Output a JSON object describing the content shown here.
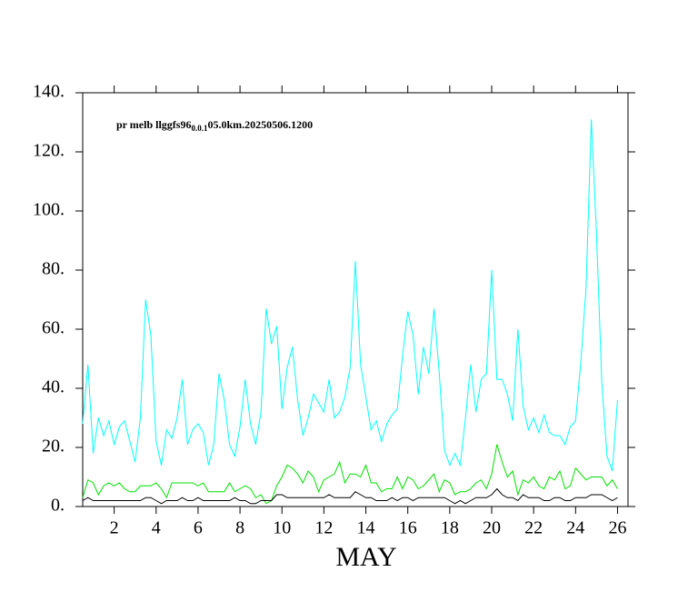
{
  "chart_data": {
    "type": "line",
    "annotation": [
      "pr melb llggfs96",
      "0.0.1",
      "05.0km.20250506.1200"
    ],
    "xlabel": "MAY",
    "xlim": [
      0.5,
      26.5
    ],
    "xticks": [
      2,
      4,
      6,
      8,
      10,
      12,
      14,
      16,
      18,
      20,
      22,
      24,
      26
    ],
    "ylim": [
      0,
      140
    ],
    "yticks": [
      {
        "value": 0,
        "label": "0."
      },
      {
        "value": 20,
        "label": "20."
      },
      {
        "value": 40,
        "label": "40."
      },
      {
        "value": 60,
        "label": "60."
      },
      {
        "value": 80,
        "label": "80."
      },
      {
        "value": 100,
        "label": "100."
      },
      {
        "value": 120,
        "label": "120."
      },
      {
        "value": 140,
        "label": "140."
      }
    ],
    "grid": false,
    "x": [
      0.5,
      0.75,
      1,
      1.25,
      1.5,
      1.75,
      2,
      2.25,
      2.5,
      2.75,
      3,
      3.25,
      3.5,
      3.75,
      4,
      4.25,
      4.5,
      4.75,
      5,
      5.25,
      5.5,
      5.75,
      6,
      6.25,
      6.5,
      6.75,
      7,
      7.25,
      7.5,
      7.75,
      8,
      8.25,
      8.5,
      8.75,
      9,
      9.25,
      9.5,
      9.75,
      10,
      10.25,
      10.5,
      10.75,
      11,
      11.25,
      11.5,
      11.75,
      12,
      12.25,
      12.5,
      12.75,
      13,
      13.25,
      13.5,
      13.75,
      14,
      14.25,
      14.5,
      14.75,
      15,
      15.25,
      15.5,
      15.75,
      16,
      16.25,
      16.5,
      16.75,
      17,
      17.25,
      17.5,
      17.75,
      18,
      18.25,
      18.5,
      18.75,
      19,
      19.25,
      19.5,
      19.75,
      20,
      20.25,
      20.5,
      20.75,
      21,
      21.25,
      21.5,
      21.75,
      22,
      22.25,
      22.5,
      22.75,
      23,
      23.25,
      23.5,
      23.75,
      24,
      24.25,
      24.5,
      24.75,
      25,
      25.25,
      25.5,
      25.75,
      26
    ],
    "series": [
      {
        "color": "#00ffff",
        "values": [
          28,
          48,
          18,
          30,
          24,
          29,
          21,
          27,
          29,
          22,
          15,
          30,
          70,
          58,
          22,
          14,
          26,
          23,
          30,
          43,
          21,
          26,
          28,
          25,
          14,
          21,
          45,
          36,
          21,
          17,
          27,
          43,
          28,
          21,
          32,
          67,
          55,
          61,
          33,
          47,
          54,
          36,
          24,
          30,
          38,
          35,
          32,
          43,
          30,
          32,
          37,
          47,
          83,
          48,
          37,
          26,
          29,
          22,
          28,
          31,
          33,
          51,
          66,
          58,
          38,
          54,
          45,
          67,
          45,
          19,
          14,
          18,
          14,
          30,
          48,
          32,
          43,
          45,
          80,
          43,
          43,
          38,
          29,
          60,
          34,
          26,
          30,
          25,
          31,
          25,
          24,
          24,
          21,
          27,
          29,
          49,
          74,
          131,
          92,
          42,
          17,
          12,
          36
        ]
      },
      {
        "color": "#00e000",
        "values": [
          3,
          9,
          8,
          4,
          7,
          8,
          7,
          8,
          6,
          5,
          5,
          7,
          7,
          7,
          8,
          6,
          3,
          8,
          8,
          8,
          8,
          8,
          7,
          8,
          5,
          5,
          5,
          5,
          8,
          5,
          6,
          7,
          6,
          3,
          4,
          1,
          2,
          7,
          10,
          14,
          13,
          11,
          8,
          12,
          10,
          5,
          9,
          10,
          11,
          15,
          8,
          11,
          11,
          10,
          14,
          8,
          8,
          5,
          6,
          6,
          10,
          6,
          10,
          9,
          6,
          7,
          9,
          11,
          5,
          9,
          8,
          4,
          5,
          5,
          6,
          8,
          9,
          6,
          11,
          21,
          15,
          10,
          12,
          4,
          9,
          8,
          10,
          7,
          6,
          10,
          9,
          12,
          6,
          7,
          13,
          11,
          9,
          10,
          10,
          10,
          7,
          9,
          6
        ]
      },
      {
        "color": "#000000",
        "values": [
          2,
          3,
          2,
          2,
          2,
          2,
          2,
          2,
          2,
          2,
          2,
          2,
          3,
          3,
          2,
          1,
          2,
          2,
          2,
          3,
          2,
          2,
          3,
          2,
          2,
          2,
          2,
          2,
          2,
          3,
          2,
          2,
          1,
          1,
          2,
          2,
          2,
          4,
          4,
          3,
          3,
          3,
          3,
          3,
          3,
          3,
          3,
          4,
          3,
          3,
          3,
          3,
          5,
          4,
          3,
          3,
          2,
          2,
          2,
          3,
          2,
          3,
          3,
          2,
          3,
          3,
          3,
          3,
          3,
          3,
          2,
          1,
          2,
          1,
          2,
          3,
          3,
          3,
          4,
          6,
          4,
          3,
          3,
          2,
          4,
          3,
          3,
          3,
          2,
          2,
          3,
          3,
          2,
          2,
          3,
          3,
          3,
          4,
          4,
          4,
          3,
          2,
          3
        ]
      }
    ]
  }
}
